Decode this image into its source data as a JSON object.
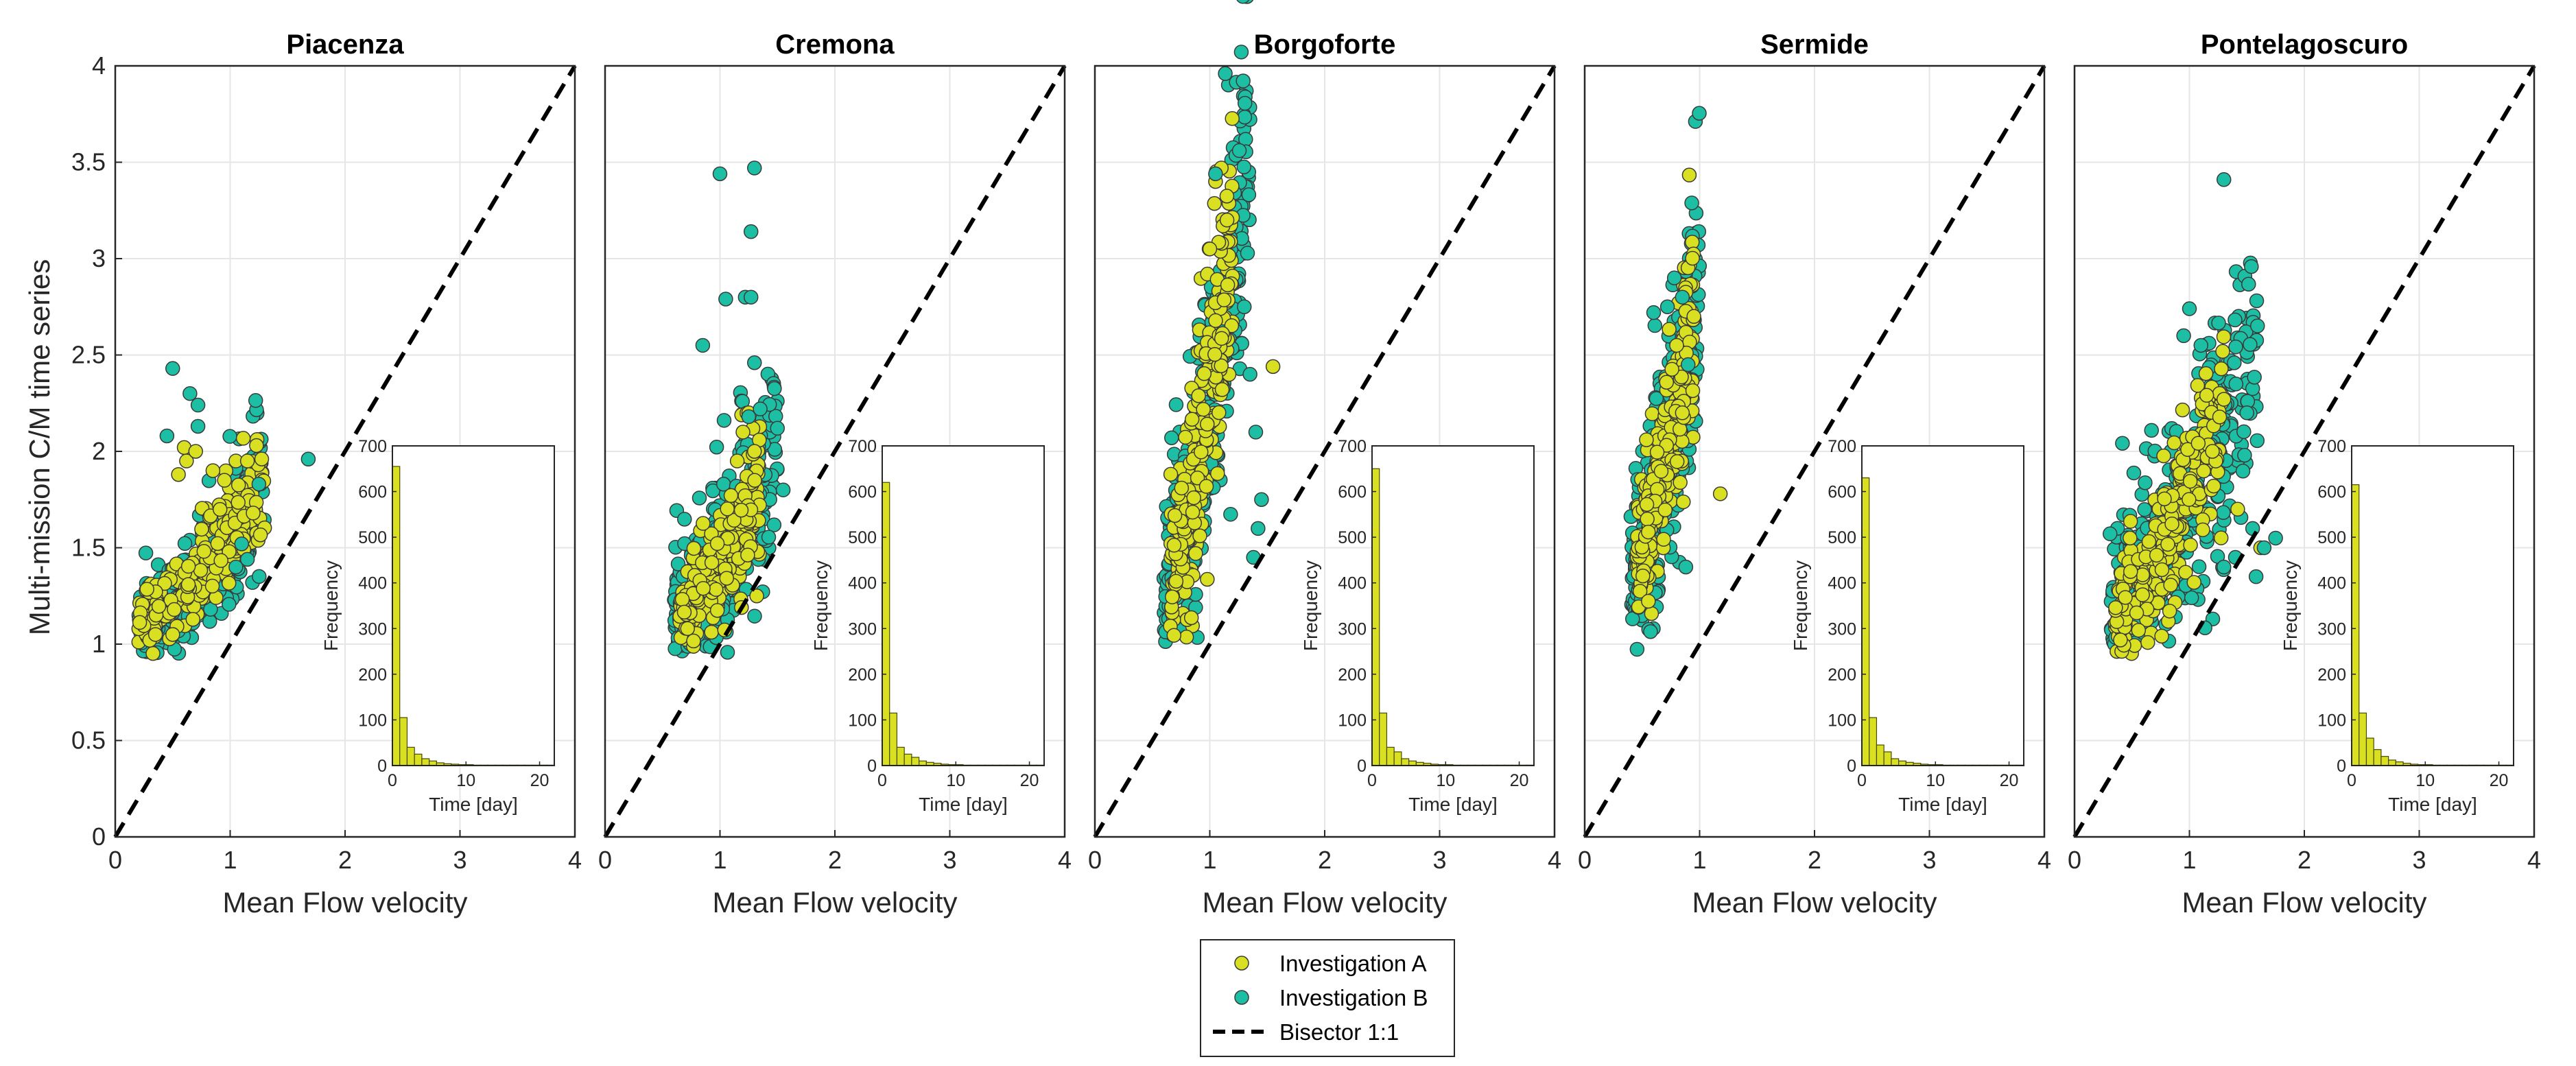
{
  "figure": {
    "ylabel": "Multi-mission C/M time series",
    "legend": {
      "placement": "bottom-center",
      "entries": [
        {
          "label": "Investigation A",
          "color": "#d9e021",
          "marker": "circle"
        },
        {
          "label": "Investigation B",
          "color": "#1cbfa3",
          "marker": "circle"
        },
        {
          "label": "Bisector 1:1",
          "color": "#000000",
          "marker": "dashed-line"
        }
      ]
    },
    "colors": {
      "a": "#d9e021",
      "b": "#1cbfa3",
      "hist": "#d9e021",
      "axis": "#262626",
      "grid": "#e6e6e6"
    }
  },
  "chart_data": [
    {
      "type": "scatter",
      "title": "Piacenza",
      "xlabel": "Mean Flow velocity",
      "ylabel": "Multi-mission C/M time series",
      "xlim": [
        0,
        4
      ],
      "ylim": [
        0,
        4
      ],
      "xticks": [
        0,
        1,
        2,
        3,
        4
      ],
      "yticks": [
        0,
        0.5,
        1,
        1.5,
        2,
        2.5,
        3,
        3.5,
        4
      ],
      "grid": true,
      "bisector": [
        [
          0,
          0
        ],
        [
          4,
          4
        ]
      ],
      "clouds": {
        "A": {
          "x_range": [
            0.2,
            1.3
          ],
          "base": 1.05,
          "slope": 0.65,
          "spread": 0.15,
          "count": 260
        },
        "B": {
          "x_range": [
            0.2,
            1.3
          ],
          "base": 1.0,
          "slope": 0.7,
          "spread": 0.2,
          "count": 320
        }
      },
      "series": [
        {
          "name": "Investigation A",
          "x": [
            0.6,
            0.55,
            0.62,
            0.7,
            0.85,
            0.95,
            1.05,
            1.15,
            1.2,
            0.5,
            0.3,
            0.35
          ],
          "y": [
            2.02,
            1.88,
            1.95,
            2.0,
            1.9,
            1.85,
            1.95,
            1.95,
            1.68,
            1.05,
            1.02,
            1.05
          ]
        },
        {
          "name": "Investigation B",
          "x": [
            0.5,
            0.65,
            0.72,
            0.72,
            1.68,
            1.25,
            0.45,
            1.1,
            1.15,
            1.05
          ],
          "y": [
            2.43,
            2.3,
            2.24,
            2.13,
            1.96,
            1.83,
            2.08,
            1.52,
            1.44,
            1.4
          ]
        }
      ],
      "inset": {
        "type": "bar",
        "xlabel": "Time [day]",
        "ylabel": "Frequency",
        "xlim": [
          0,
          22
        ],
        "ylim": [
          0,
          700
        ],
        "xticks": [
          0,
          10,
          20
        ],
        "yticks": [
          0,
          100,
          200,
          300,
          400,
          500,
          600,
          700
        ],
        "bins": [
          0,
          1,
          2,
          3,
          4,
          5,
          6,
          7,
          8,
          9,
          10,
          11,
          12,
          13,
          14,
          15,
          16,
          17,
          18,
          19,
          20,
          21
        ],
        "values": [
          655,
          105,
          40,
          25,
          15,
          10,
          6,
          4,
          3,
          2,
          2,
          1,
          1,
          1,
          1,
          1,
          1,
          1,
          1,
          1,
          1,
          1
        ]
      }
    },
    {
      "type": "scatter",
      "title": "Cremona",
      "xlabel": "Mean Flow velocity",
      "xlim": [
        0,
        4
      ],
      "ylim": [
        0,
        4
      ],
      "xticks": [
        0,
        1,
        2,
        3,
        4
      ],
      "grid": true,
      "bisector": [
        [
          0,
          0
        ],
        [
          4,
          4
        ]
      ],
      "clouds": {
        "A": {
          "x_range": [
            0.65,
            1.35
          ],
          "base": 1.1,
          "slope": 0.95,
          "spread": 0.2,
          "count": 240
        },
        "B": {
          "x_range": [
            0.6,
            1.5
          ],
          "base": 1.05,
          "slope": 1.0,
          "spread": 0.28,
          "count": 320
        }
      },
      "series": [
        {
          "name": "Investigation A",
          "x": [
            1.25,
            1.2,
            1.3,
            1.15,
            1.32
          ],
          "y": [
            2.2,
            2.1,
            2.0,
            1.95,
            1.25
          ]
        },
        {
          "name": "Investigation B",
          "x": [
            1.0,
            1.3,
            1.27,
            1.22,
            1.05,
            1.27,
            1.3,
            0.85,
            1.35,
            1.25,
            1.5,
            1.55
          ],
          "y": [
            3.44,
            3.47,
            3.14,
            2.8,
            2.79,
            2.8,
            2.46,
            2.55,
            2.22,
            2.18,
            2.12,
            1.8
          ]
        }
      ],
      "inset": {
        "type": "bar",
        "xlabel": "Time [day]",
        "ylabel": "Frequency",
        "xlim": [
          0,
          22
        ],
        "ylim": [
          0,
          700
        ],
        "xticks": [
          0,
          10,
          20
        ],
        "yticks": [
          0,
          100,
          200,
          300,
          400,
          500,
          600,
          700
        ],
        "bins": [
          0,
          1,
          2,
          3,
          4,
          5,
          6,
          7,
          8,
          9,
          10,
          11,
          12,
          13,
          14,
          15,
          16,
          17,
          18,
          19,
          20,
          21
        ],
        "values": [
          620,
          115,
          40,
          25,
          18,
          10,
          7,
          5,
          3,
          2,
          2,
          1,
          1,
          1,
          1,
          1,
          1,
          1,
          1,
          1,
          1,
          1
        ]
      }
    },
    {
      "type": "scatter",
      "title": "Borgoforte",
      "xlabel": "Mean Flow velocity",
      "xlim": [
        0,
        4
      ],
      "ylim": [
        0,
        4
      ],
      "xticks": [
        0,
        1,
        2,
        3,
        4
      ],
      "grid": true,
      "bisector": [
        [
          0,
          0
        ],
        [
          4,
          4
        ]
      ],
      "clouds": {
        "A": {
          "x_range": [
            0.65,
            1.2
          ],
          "base": 1.2,
          "slope": 3.2,
          "spread": 0.35,
          "count": 260
        },
        "B": {
          "x_range": [
            0.6,
            1.35
          ],
          "base": 1.15,
          "slope": 3.0,
          "spread": 0.45,
          "count": 320
        }
      },
      "series": [
        {
          "name": "Investigation A",
          "x": [
            1.1,
            1.05,
            1.55,
            1.15,
            1.0
          ],
          "y": [
            3.47,
            3.4,
            2.44,
            3.2,
            3.05
          ]
        },
        {
          "name": "Investigation B",
          "x": [
            1.05,
            1.3,
            1.35,
            1.4,
            1.45,
            1.42,
            1.38
          ],
          "y": [
            3.44,
            2.75,
            2.4,
            2.1,
            1.75,
            1.6,
            1.45
          ]
        }
      ],
      "inset": {
        "type": "bar",
        "xlabel": "Time [day]",
        "ylabel": "Frequency",
        "xlim": [
          0,
          22
        ],
        "ylim": [
          0,
          700
        ],
        "xticks": [
          0,
          10,
          20
        ],
        "yticks": [
          0,
          100,
          200,
          300,
          400,
          500,
          600,
          700
        ],
        "bins": [
          0,
          1,
          2,
          3,
          4,
          5,
          6,
          7,
          8,
          9,
          10,
          11,
          12,
          13,
          14,
          15,
          16,
          17,
          18,
          19,
          20,
          21
        ],
        "values": [
          650,
          115,
          40,
          30,
          15,
          10,
          7,
          5,
          3,
          2,
          2,
          1,
          1,
          1,
          1,
          1,
          1,
          1,
          1,
          1,
          1,
          1
        ]
      }
    },
    {
      "type": "scatter",
      "title": "Sermide",
      "xlabel": "Mean Flow velocity",
      "xlim": [
        0,
        4
      ],
      "ylim": [
        0,
        4
      ],
      "xticks": [
        0,
        1,
        2,
        3,
        4
      ],
      "grid": true,
      "bisector": [
        [
          0,
          0
        ],
        [
          4,
          4
        ]
      ],
      "clouds": {
        "A": {
          "x_range": [
            0.45,
            0.95
          ],
          "base": 1.3,
          "slope": 2.6,
          "spread": 0.3,
          "count": 240
        },
        "B": {
          "x_range": [
            0.4,
            1.0
          ],
          "base": 1.15,
          "slope": 2.8,
          "spread": 0.4,
          "count": 320
        }
      },
      "series": [
        {
          "name": "Investigation A",
          "x": [
            0.95,
            0.8,
            1.18,
            0.85
          ],
          "y": [
            2.7,
            2.55,
            1.78,
            2.2
          ]
        },
        {
          "name": "Investigation B",
          "x": [
            0.78,
            0.85,
            0.72,
            0.9,
            0.6,
            0.88
          ],
          "y": [
            2.9,
            2.8,
            2.75,
            2.45,
            2.72,
            1.4
          ]
        }
      ],
      "inset": {
        "type": "bar",
        "xlabel": "Time [day]",
        "ylabel": "Frequency",
        "xlim": [
          0,
          22
        ],
        "ylim": [
          0,
          700
        ],
        "xticks": [
          0,
          10,
          20
        ],
        "yticks": [
          0,
          100,
          200,
          300,
          400,
          500,
          600,
          700
        ],
        "bins": [
          0,
          1,
          2,
          3,
          4,
          5,
          6,
          7,
          8,
          9,
          10,
          11,
          12,
          13,
          14,
          15,
          16,
          17,
          18,
          19,
          20,
          21
        ],
        "values": [
          630,
          105,
          45,
          30,
          15,
          10,
          7,
          5,
          3,
          2,
          2,
          1,
          1,
          1,
          1,
          1,
          1,
          1,
          1,
          1,
          1,
          1
        ]
      }
    },
    {
      "type": "scatter",
      "title": "Pontelagoscuro",
      "xlabel": "Mean Flow velocity",
      "xlim": [
        0,
        4
      ],
      "ylim": [
        0,
        4
      ],
      "xticks": [
        0,
        1,
        2,
        3,
        4
      ],
      "grid": true,
      "bisector": [
        [
          0,
          0
        ],
        [
          4,
          4
        ]
      ],
      "clouds": {
        "A": {
          "x_range": [
            0.35,
            1.3
          ],
          "base": 1.05,
          "slope": 1.1,
          "spread": 0.25,
          "count": 260
        },
        "B": {
          "x_range": [
            0.3,
            1.6
          ],
          "base": 1.0,
          "slope": 1.05,
          "spread": 0.35,
          "count": 340
        }
      },
      "series": [
        {
          "name": "Investigation A",
          "x": [
            1.3,
            1.2,
            1.42,
            1.62
          ],
          "y": [
            2.27,
            2.0,
            1.7,
            1.5
          ]
        },
        {
          "name": "Investigation B",
          "x": [
            1.3,
            1.0,
            0.95,
            1.1,
            1.5,
            1.48,
            1.75,
            1.4,
            1.55,
            1.3,
            1.65,
            1.58
          ],
          "y": [
            3.41,
            2.74,
            2.6,
            2.55,
            2.2,
            1.98,
            1.55,
            1.45,
            1.6,
            1.4,
            1.5,
            1.35
          ]
        }
      ],
      "inset": {
        "type": "bar",
        "xlabel": "Time [day]",
        "ylabel": "Frequency",
        "xlim": [
          0,
          22
        ],
        "ylim": [
          0,
          700
        ],
        "xticks": [
          0,
          10,
          20
        ],
        "yticks": [
          0,
          100,
          200,
          300,
          400,
          500,
          600,
          700
        ],
        "bins": [
          0,
          1,
          2,
          3,
          4,
          5,
          6,
          7,
          8,
          9,
          10,
          11,
          12,
          13,
          14,
          15,
          16,
          17,
          18,
          19,
          20,
          21
        ],
        "values": [
          615,
          115,
          60,
          35,
          20,
          12,
          8,
          5,
          3,
          2,
          2,
          1,
          1,
          1,
          1,
          1,
          1,
          1,
          1,
          1,
          1,
          1
        ]
      }
    }
  ]
}
